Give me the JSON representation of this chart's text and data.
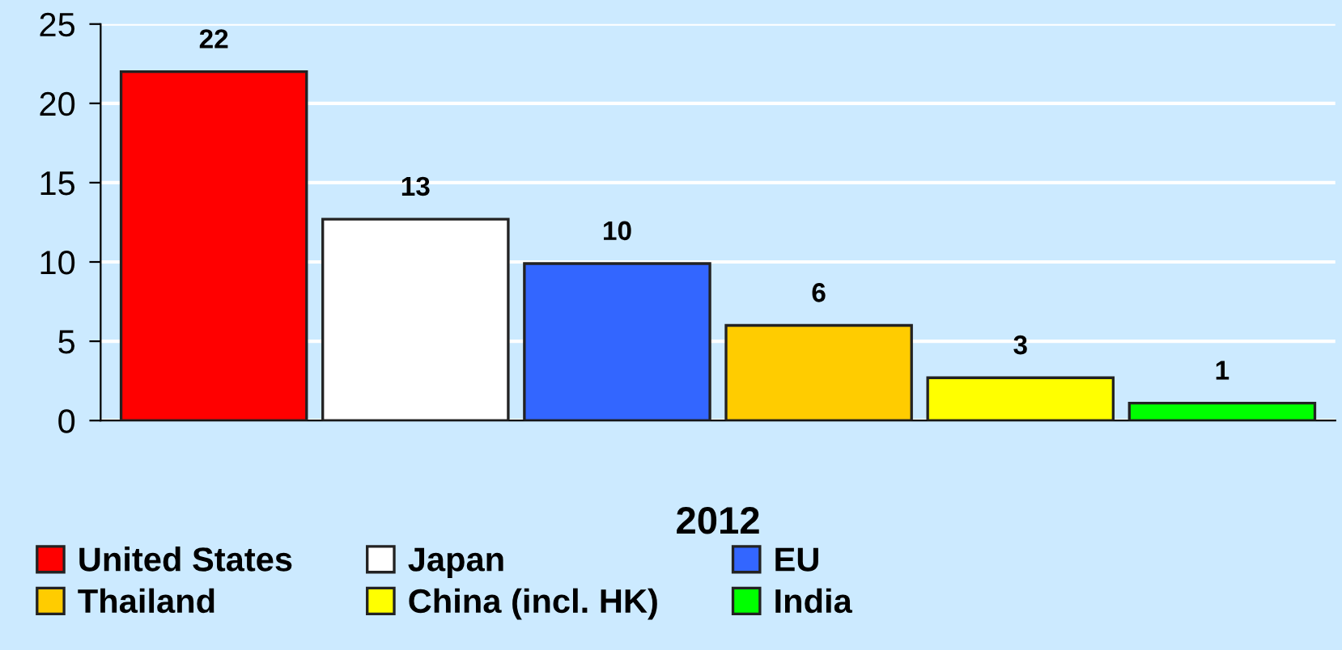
{
  "chart_data": {
    "type": "bar",
    "categories": [
      "2012"
    ],
    "series": [
      {
        "name": "United States",
        "color": "#ff0000",
        "values": [
          22
        ],
        "value_labels": [
          "22"
        ]
      },
      {
        "name": "Japan",
        "color": "#ffffff",
        "values": [
          12.7
        ],
        "value_labels": [
          "13"
        ]
      },
      {
        "name": "EU",
        "color": "#3366ff",
        "values": [
          9.9
        ],
        "value_labels": [
          "10"
        ]
      },
      {
        "name": "Thailand",
        "color": "#ffcc00",
        "values": [
          6.0
        ],
        "value_labels": [
          "6"
        ]
      },
      {
        "name": "China (incl. HK)",
        "color": "#ffff00",
        "values": [
          2.7
        ],
        "value_labels": [
          "3"
        ]
      },
      {
        "name": "India",
        "color": "#00ff00",
        "values": [
          1.1
        ],
        "value_labels": [
          "1"
        ]
      }
    ],
    "ylim": [
      0,
      25
    ],
    "yticks": [
      0,
      5,
      10,
      15,
      20,
      25
    ],
    "grid": "y",
    "legend": "bottom"
  }
}
